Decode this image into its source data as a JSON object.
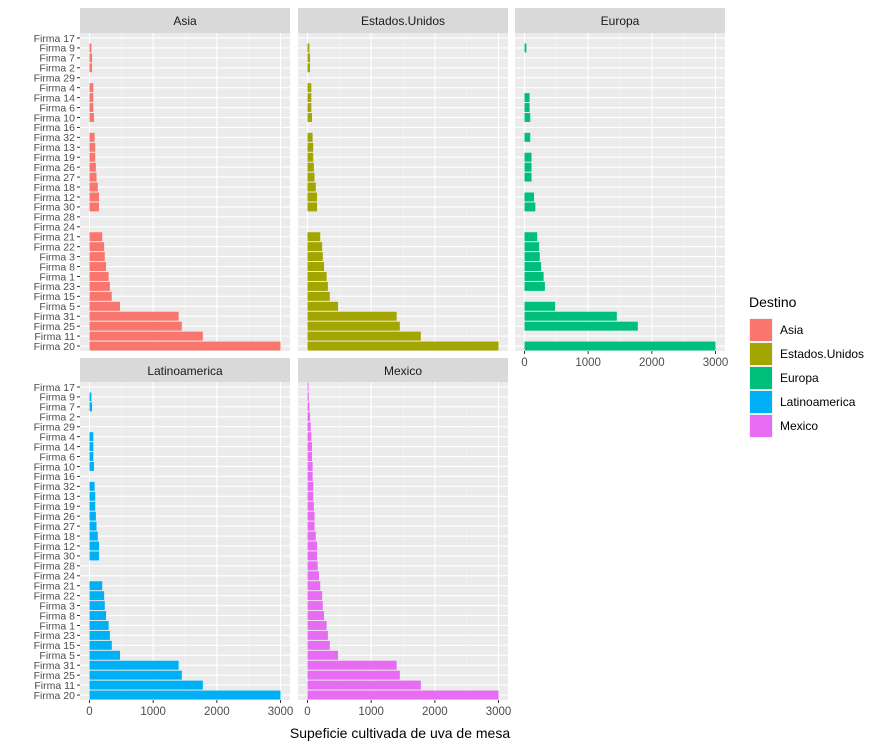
{
  "chart_data": {
    "type": "bar",
    "orientation": "horizontal",
    "xlabel": "Supeficie cultivada de uva de mesa",
    "ylabel": "",
    "xlim": [
      0,
      3000
    ],
    "x_ticks": [
      0,
      1000,
      2000,
      3000
    ],
    "x_tick_labels": [
      "0",
      "1000",
      "2000",
      "3000"
    ],
    "categories": [
      "Firma 17",
      "Firma 9",
      "Firma 7",
      "Firma 2",
      "Firma 29",
      "Firma 4",
      "Firma 14",
      "Firma 6",
      "Firma 10",
      "Firma 16",
      "Firma 32",
      "Firma 13",
      "Firma 19",
      "Firma 26",
      "Firma 27",
      "Firma 18",
      "Firma 12",
      "Firma 30",
      "Firma 28",
      "Firma 24",
      "Firma 21",
      "Firma 22",
      "Firma 3",
      "Firma 8",
      "Firma 1",
      "Firma 23",
      "Firma 15",
      "Firma 5",
      "Firma 31",
      "Firma 25",
      "Firma 11",
      "Firma 20"
    ],
    "legend": {
      "title": "Destino",
      "position": "right",
      "entries": [
        {
          "label": "Asia",
          "color": "#F8766D"
        },
        {
          "label": "Estados.Unidos",
          "color": "#A3A500"
        },
        {
          "label": "Europa",
          "color": "#00BF7D"
        },
        {
          "label": "Latinoamerica",
          "color": "#00B0F6"
        },
        {
          "label": "Mexico",
          "color": "#E76BF3"
        }
      ]
    },
    "facets": [
      {
        "name": "Asia",
        "color": "#F8766D",
        "values": [
          null,
          30,
          40,
          40,
          null,
          60,
          60,
          60,
          70,
          null,
          80,
          90,
          90,
          100,
          110,
          130,
          150,
          150,
          null,
          null,
          200,
          230,
          240,
          260,
          300,
          320,
          350,
          480,
          1400,
          1450,
          1780,
          3000
        ]
      },
      {
        "name": "Estados.Unidos",
        "color": "#A3A500",
        "values": [
          null,
          30,
          40,
          40,
          null,
          60,
          60,
          60,
          70,
          null,
          80,
          90,
          90,
          100,
          110,
          130,
          150,
          150,
          null,
          null,
          200,
          230,
          240,
          260,
          300,
          320,
          350,
          480,
          1400,
          1450,
          1780,
          3000
        ]
      },
      {
        "name": "Europa",
        "color": "#00BF7D",
        "values": [
          null,
          30,
          null,
          null,
          null,
          null,
          80,
          80,
          90,
          null,
          90,
          null,
          110,
          110,
          110,
          null,
          150,
          170,
          null,
          null,
          200,
          230,
          240,
          260,
          300,
          320,
          null,
          480,
          1450,
          1780,
          null,
          3000
        ]
      },
      {
        "name": "Latinoamerica",
        "color": "#00B0F6",
        "values": [
          null,
          30,
          40,
          null,
          null,
          60,
          60,
          60,
          70,
          null,
          80,
          90,
          90,
          100,
          110,
          130,
          150,
          150,
          null,
          null,
          200,
          230,
          240,
          260,
          300,
          320,
          350,
          480,
          1400,
          1450,
          1780,
          3000
        ]
      },
      {
        "name": "Mexico",
        "color": "#E76BF3",
        "values": [
          5,
          20,
          30,
          40,
          50,
          60,
          70,
          70,
          80,
          80,
          90,
          90,
          100,
          110,
          110,
          130,
          150,
          150,
          160,
          180,
          200,
          230,
          240,
          260,
          300,
          320,
          350,
          480,
          1400,
          1450,
          1780,
          3000
        ]
      }
    ]
  }
}
